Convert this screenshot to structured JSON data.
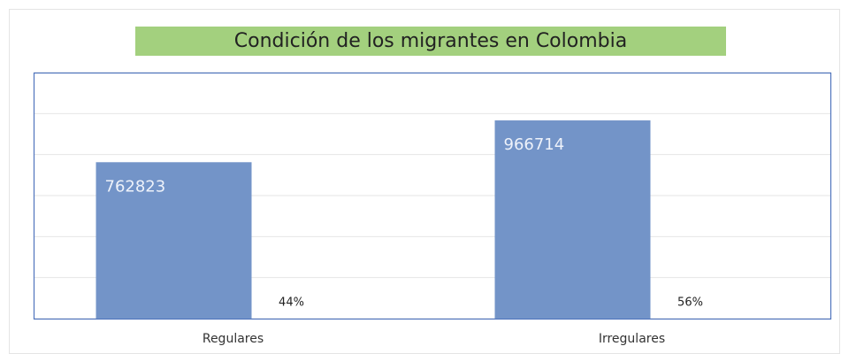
{
  "chart_data": {
    "type": "bar",
    "title": "Condición de los migrantes en Colombia",
    "categories": [
      "Regulares",
      "Irregulares"
    ],
    "values": [
      762823,
      966714
    ],
    "shares": [
      {
        "value": 44,
        "label": "44%"
      },
      {
        "value": 56,
        "label": "56%"
      }
    ],
    "color": "#7394c8",
    "ylim": [
      0,
      1200000
    ],
    "yticks": [
      0,
      200000,
      400000,
      600000,
      800000,
      1000000,
      1200000
    ],
    "grid": true
  }
}
